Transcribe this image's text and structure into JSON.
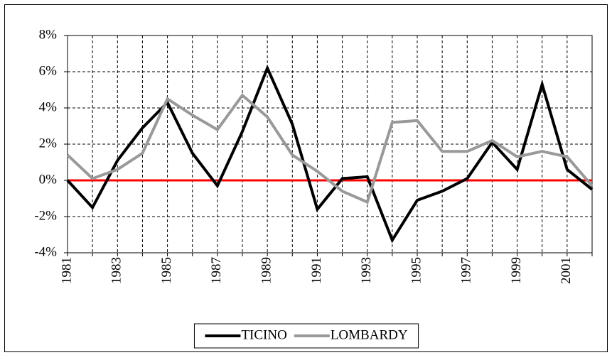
{
  "chart_data": {
    "type": "line",
    "categories": [
      "1981",
      null,
      "1983",
      null,
      "1985",
      null,
      "1987",
      null,
      "1989",
      null,
      "1991",
      null,
      "1993",
      null,
      "1995",
      null,
      "1997",
      null,
      "1999",
      null,
      "2001",
      null
    ],
    "series": [
      {
        "name": "TICINO",
        "color": "#000000",
        "values": [
          0,
          -1.5,
          1.1,
          2.9,
          4.3,
          1.5,
          -0.3,
          2.7,
          6.2,
          3.1,
          -1.6,
          0.1,
          0.2,
          -3.3,
          -1.1,
          -0.6,
          0.1,
          2.1,
          0.6,
          5.3,
          0.6,
          -0.5
        ]
      },
      {
        "name": "LOMBARDY",
        "color": "#999999",
        "values": [
          1.4,
          0.1,
          0.6,
          1.5,
          4.5,
          3.6,
          2.8,
          4.7,
          3.5,
          1.4,
          0.5,
          -0.6,
          -1.2,
          3.2,
          3.3,
          1.6,
          1.6,
          2.2,
          1.3,
          1.6,
          1.3,
          -0.3
        ]
      }
    ],
    "ylim": [
      -4,
      8
    ],
    "yticks": [
      {
        "value": -4,
        "label": "-4%"
      },
      {
        "value": -2,
        "label": "-2%"
      },
      {
        "value": 0,
        "label": "0%"
      },
      {
        "value": 2,
        "label": "2%"
      },
      {
        "value": 4,
        "label": "4%"
      },
      {
        "value": 6,
        "label": "6%"
      },
      {
        "value": 8,
        "label": "8%"
      }
    ],
    "grid": true,
    "reference_line": {
      "value": 0,
      "color": "#ff0000"
    },
    "legend": "bottom"
  }
}
